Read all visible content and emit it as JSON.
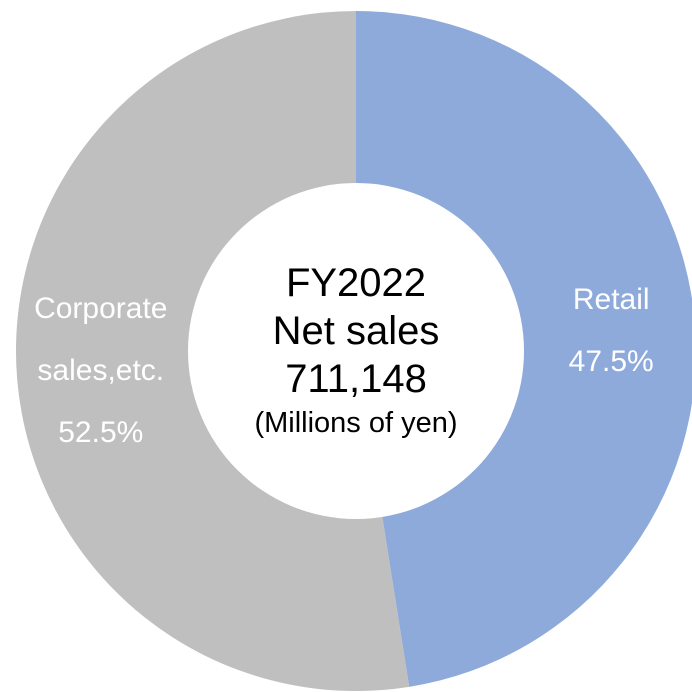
{
  "chart_data": {
    "type": "pie",
    "donut": true,
    "title": "FY2022",
    "subtitle": "Net sales",
    "total": "711,148",
    "unit": "(Millions of yen)",
    "categories": [
      "Retail",
      "Corporate sales,etc."
    ],
    "values": [
      47.5,
      52.5
    ],
    "value_labels": [
      "47.5%",
      "52.5%"
    ],
    "colors": [
      "#8eaadb",
      "#bfbfbf"
    ]
  }
}
